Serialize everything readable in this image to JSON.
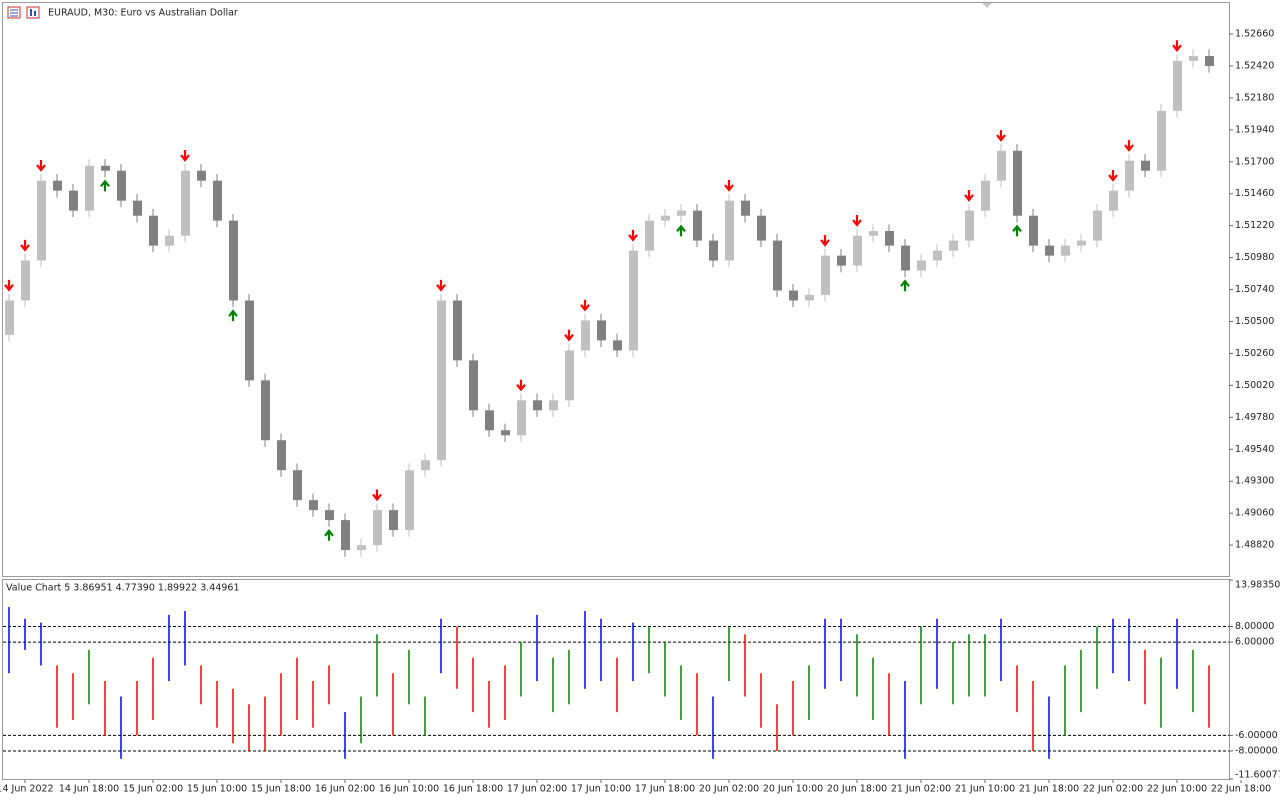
{
  "chart_data": {
    "type": "candlestick",
    "title": "EURAUD, M30:  Euro vs Australian Dollar",
    "up_color": "#c0c0c0",
    "down_color": "#808080",
    "buy_color": "#008000",
    "sell_color": "#ff0000",
    "open": [
      1.504,
      1.50658,
      1.50958,
      1.51558,
      1.51483,
      1.51333,
      1.5167,
      1.51633,
      1.51408,
      1.51295,
      1.5107,
      1.51145,
      1.51633,
      1.51558,
      1.51258,
      1.50658,
      1.50058,
      1.49608,
      1.49383,
      1.49158,
      1.49083,
      1.49008,
      1.48783,
      1.4882,
      1.49083,
      1.48933,
      1.49383,
      1.49458,
      1.50658,
      1.50208,
      1.49833,
      1.49683,
      1.49645,
      1.49908,
      1.49833,
      1.49908,
      1.50283,
      1.50508,
      1.50358,
      1.50283,
      1.51033,
      1.51258,
      1.51295,
      1.51333,
      1.51108,
      1.50958,
      1.51408,
      1.51295,
      1.51108,
      1.50733,
      1.50658,
      1.507,
      1.50995,
      1.5092,
      1.51145,
      1.5118,
      1.5107,
      1.50883,
      1.50958,
      1.51033,
      1.51108,
      1.51333,
      1.51558,
      1.51783,
      1.51295,
      1.5107,
      1.50995,
      1.5107,
      1.51108,
      1.51333,
      1.51483,
      1.51708,
      1.51633,
      1.52083,
      1.52458,
      1.52495
    ],
    "high": [
      1.50708,
      1.51008,
      1.51608,
      1.51608,
      1.51533,
      1.5172,
      1.5172,
      1.51683,
      1.51458,
      1.51345,
      1.51195,
      1.51683,
      1.51683,
      1.51608,
      1.51308,
      1.50708,
      1.50108,
      1.49658,
      1.49433,
      1.49208,
      1.49133,
      1.49058,
      1.4887,
      1.49133,
      1.49133,
      1.49433,
      1.49508,
      1.50708,
      1.50708,
      1.50258,
      1.49883,
      1.49733,
      1.49958,
      1.49958,
      1.49958,
      1.50333,
      1.50558,
      1.50558,
      1.50408,
      1.51083,
      1.51308,
      1.51345,
      1.51383,
      1.51383,
      1.51158,
      1.51458,
      1.51458,
      1.51345,
      1.51158,
      1.50783,
      1.5075,
      1.51045,
      1.51045,
      1.51195,
      1.5123,
      1.5123,
      1.5112,
      1.51008,
      1.51083,
      1.51158,
      1.51383,
      1.51608,
      1.51833,
      1.51833,
      1.51345,
      1.5112,
      1.5112,
      1.51158,
      1.51383,
      1.51533,
      1.51758,
      1.51758,
      1.52133,
      1.52508,
      1.52545,
      1.52545
    ],
    "low": [
      1.5035,
      1.50608,
      1.50908,
      1.51433,
      1.51283,
      1.51283,
      1.51583,
      1.51358,
      1.51245,
      1.5102,
      1.5102,
      1.51095,
      1.51508,
      1.51208,
      1.50608,
      1.50008,
      1.49558,
      1.49333,
      1.49108,
      1.49033,
      1.48958,
      1.48733,
      1.48733,
      1.4877,
      1.48883,
      1.48883,
      1.49333,
      1.49408,
      1.50158,
      1.49783,
      1.49633,
      1.49595,
      1.49595,
      1.49783,
      1.49783,
      1.49858,
      1.50233,
      1.50308,
      1.50233,
      1.50233,
      1.50983,
      1.51208,
      1.51245,
      1.51058,
      1.50908,
      1.50908,
      1.51245,
      1.51058,
      1.50683,
      1.50608,
      1.50608,
      1.5065,
      1.5087,
      1.5087,
      1.51095,
      1.5102,
      1.50833,
      1.50833,
      1.50908,
      1.50983,
      1.51058,
      1.51283,
      1.51508,
      1.51245,
      1.5102,
      1.50945,
      1.50945,
      1.5102,
      1.51058,
      1.51283,
      1.51433,
      1.51583,
      1.51583,
      1.52033,
      1.52408,
      1.5237
    ],
    "close": [
      1.50658,
      1.50958,
      1.51558,
      1.51483,
      1.51333,
      1.5167,
      1.51633,
      1.51408,
      1.51295,
      1.5107,
      1.51145,
      1.51633,
      1.51558,
      1.51258,
      1.50658,
      1.50058,
      1.49608,
      1.49383,
      1.49158,
      1.49083,
      1.49008,
      1.48783,
      1.4882,
      1.49083,
      1.48933,
      1.49383,
      1.49458,
      1.50658,
      1.50208,
      1.49833,
      1.49683,
      1.49645,
      1.49908,
      1.49833,
      1.49908,
      1.50283,
      1.50508,
      1.50358,
      1.50283,
      1.51033,
      1.51258,
      1.51295,
      1.51333,
      1.51108,
      1.50958,
      1.51408,
      1.51295,
      1.51108,
      1.50733,
      1.50658,
      1.507,
      1.50995,
      1.5092,
      1.51145,
      1.5118,
      1.5107,
      1.50883,
      1.50958,
      1.51033,
      1.51108,
      1.51333,
      1.51558,
      1.51783,
      1.51295,
      1.5107,
      1.50995,
      1.5107,
      1.51108,
      1.51333,
      1.51483,
      1.51708,
      1.51633,
      1.52083,
      1.52458,
      1.52495,
      1.5242
    ],
    "sell_signals": [
      0,
      1,
      2,
      11,
      23,
      27,
      32,
      35,
      36,
      39,
      45,
      51,
      53,
      60,
      62,
      69,
      70,
      73
    ],
    "buy_signals": [
      6,
      14,
      20,
      42,
      56,
      63
    ],
    "ylim": [
      1.48588,
      1.52893
    ],
    "yticks": [
      {
        "value": 1.5266,
        "label": "1.52660"
      },
      {
        "value": 1.5242,
        "label": "1.52420"
      },
      {
        "value": 1.5218,
        "label": "1.52180"
      },
      {
        "value": 1.5194,
        "label": "1.51940"
      },
      {
        "value": 1.517,
        "label": "1.51700"
      },
      {
        "value": 1.5146,
        "label": "1.51460"
      },
      {
        "value": 1.5122,
        "label": "1.51220"
      },
      {
        "value": 1.5098,
        "label": "1.50980"
      },
      {
        "value": 1.5074,
        "label": "1.50740"
      },
      {
        "value": 1.505,
        "label": "1.50500"
      },
      {
        "value": 1.5026,
        "label": "1.50260"
      },
      {
        "value": 1.5002,
        "label": "1.50020"
      },
      {
        "value": 1.4978,
        "label": "1.49780"
      },
      {
        "value": 1.4954,
        "label": "1.49540"
      },
      {
        "value": 1.493,
        "label": "1.49300"
      },
      {
        "value": 1.4906,
        "label": "1.49060"
      },
      {
        "value": 1.4882,
        "label": "1.48820"
      }
    ],
    "xlabels": [
      "14 Jun 2022",
      "14 Jun 18:00",
      "15 Jun 02:00",
      "15 Jun 10:00",
      "15 Jun 18:00",
      "16 Jun 02:00",
      "16 Jun 10:00",
      "16 Jun 18:00",
      "17 Jun 02:00",
      "17 Jun 10:00",
      "17 Jun 18:00",
      "20 Jun 02:00",
      "20 Jun 10:00",
      "20 Jun 18:00",
      "21 Jun 02:00",
      "21 Jun 10:00",
      "21 Jun 18:00",
      "22 Jun 02:00",
      "22 Jun 10:00",
      "22 Jun 18:00"
    ],
    "indicator": {
      "label": "Value Chart 5 3.86951 4.77390 1.89922 3.44961",
      "up_color": "#008000",
      "down_color": "#ff0000",
      "extreme_color": "#0000ff",
      "high": [
        10.5,
        9,
        8.5,
        3,
        2,
        5,
        1,
        -1,
        1,
        4,
        9.5,
        10,
        3,
        1,
        0,
        -2,
        -1,
        2,
        4,
        1,
        3,
        -3,
        -1,
        7,
        2,
        5,
        -1,
        9,
        8,
        4,
        1,
        3,
        6,
        9.5,
        4,
        5,
        10,
        9,
        4,
        8.5,
        8,
        6,
        3,
        2,
        -1,
        8,
        7,
        2,
        -2,
        1,
        3,
        9,
        9,
        7,
        4,
        2,
        1,
        8,
        9,
        6,
        7,
        7,
        9,
        3,
        1,
        -1,
        3,
        5,
        8,
        9,
        9,
        5,
        4,
        9,
        5,
        3
      ],
      "low": [
        2,
        5,
        3,
        -5,
        -4,
        -2,
        -6,
        -9,
        -6,
        -4,
        1,
        3,
        -2,
        -5,
        -7,
        -8,
        -8,
        -6,
        -4,
        -5,
        -2,
        -9,
        -7,
        -1,
        -6,
        -2,
        -6,
        2,
        0,
        -3,
        -5,
        -4,
        -1,
        1,
        -3,
        -2,
        0,
        1,
        -3,
        1,
        2,
        -1,
        -4,
        -6,
        -9,
        1,
        -1,
        -5,
        -8,
        -6,
        -4,
        0,
        1,
        -1,
        -4,
        -6,
        -9,
        -2,
        0,
        -2,
        -1,
        -1,
        1,
        -3,
        -8,
        -9,
        -6,
        -3,
        0,
        2,
        1,
        -2,
        -5,
        0,
        -3,
        -5
      ],
      "ylim": [
        -11.60077,
        13.9835
      ],
      "yticks": [
        {
          "value": 13.9835,
          "label": "13.98350"
        },
        {
          "value": 8,
          "label": "8.00000"
        },
        {
          "value": 6,
          "label": "6.00000"
        },
        {
          "value": -6,
          "label": "-6.00000"
        },
        {
          "value": -8,
          "label": "-8.00000"
        },
        {
          "value": -11.60077,
          "label": "-11.60077"
        }
      ]
    }
  }
}
